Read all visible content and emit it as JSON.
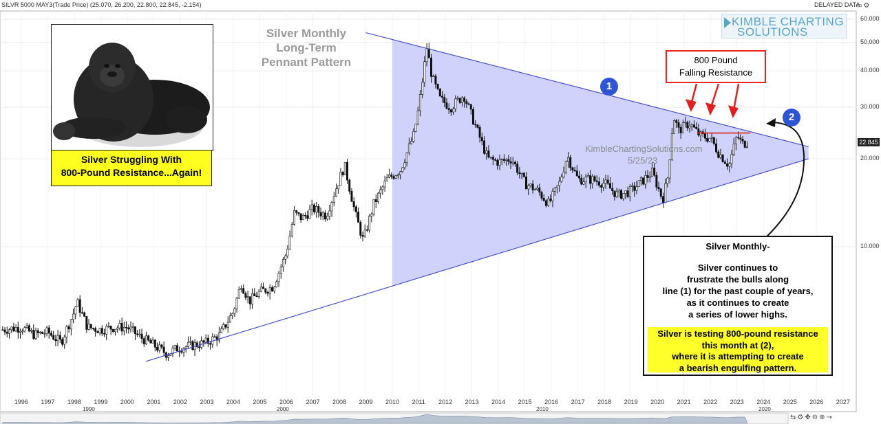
{
  "header": {
    "instrument": "SILVR 5000 MAY3(Trade Price) (25.070, 26.200, 22.800, 22.845, -2.154)",
    "delayed": "DELAYED DATA"
  },
  "logo": {
    "line1": "KIMBLE CHARTING",
    "line2": "SOLUTIONS"
  },
  "title_lines": [
    "Silver Monthly",
    "Long-Term",
    "Pennant Pattern"
  ],
  "callout_gorilla": {
    "line1": "Silver Struggling With",
    "line2": "800-Pound Resistance...Again!"
  },
  "callout_resistance": {
    "line1": "800 Pound",
    "line2": "Falling Resistance"
  },
  "note": {
    "heading": "Silver Monthly-",
    "body": [
      "Silver continues to",
      "frustrate the bulls along",
      "line (1) for the past couple of years,",
      "as it continues to create",
      "a series of lower highs."
    ],
    "highlight": [
      "Silver is testing 800-pound resistance",
      "this month at (2),",
      "where it is attempting to create",
      "a bearish engulfing pattern."
    ]
  },
  "markers": {
    "one": "1",
    "two": "2"
  },
  "watermark": {
    "site": "KimbleChartingSolutions.com",
    "date": "5/25/23"
  },
  "price_tag": "22.845",
  "decade_labels": [
    "1990",
    "2000",
    "2010",
    "2020"
  ],
  "icons": [
    "gorilla-photo",
    "zoom-icon",
    "settings-icon",
    "pan-icon",
    "zoom-out-icon",
    "zoom-in-icon",
    "arrow-icon"
  ],
  "colors": {
    "pennant_fill": "#cfd3fb",
    "trendline": "#4a50c8",
    "resistance": "#e02020",
    "highlight": "#ffff2a",
    "marker": "#2f55d4"
  },
  "chart_data": {
    "type": "line",
    "title": "",
    "xlabel": "",
    "ylabel": "",
    "y_scale": "log",
    "ylim": [
      4.3,
      62
    ],
    "xlim": [
      1995.2,
      2027.5
    ],
    "y_ticks": [
      10,
      20,
      30,
      40,
      50,
      60
    ],
    "y_tick_labels": [
      "10.000",
      "20.000",
      "30.000",
      "40.000",
      "50.000",
      "60.000"
    ],
    "x_ticks": [
      1996,
      1997,
      1998,
      1999,
      2000,
      2001,
      2002,
      2003,
      2004,
      2005,
      2006,
      2007,
      2008,
      2009,
      2010,
      2011,
      2012,
      2013,
      2014,
      2015,
      2016,
      2017,
      2018,
      2019,
      2020,
      2021,
      2022,
      2023,
      2024,
      2025,
      2026,
      2027
    ],
    "grid": true,
    "series": [
      {
        "x": [
          1995.3,
          1996.0,
          1996.5,
          1997.0,
          1997.5,
          1998.0,
          1998.1,
          1998.5,
          1999.0,
          1999.5,
          2000.0,
          2000.5,
          2001.0,
          2001.5,
          2001.9,
          2002.5,
          2003.0,
          2003.5,
          2004.0,
          2004.3,
          2004.6,
          2005.0,
          2005.5,
          2006.0,
          2006.3,
          2006.6,
          2007.0,
          2007.5,
          2008.0,
          2008.2,
          2008.6,
          2008.9,
          2009.3,
          2009.8,
          2010.3,
          2010.8,
          2011.0,
          2011.3,
          2011.5,
          2011.8,
          2012.2,
          2012.7,
          2013.2,
          2013.6,
          2014.0,
          2014.5,
          2015.0,
          2015.5,
          2015.9,
          2016.3,
          2016.6,
          2017.0,
          2017.5,
          2018.0,
          2018.5,
          2019.0,
          2019.5,
          2019.8,
          2020.2,
          2020.4,
          2020.6,
          2020.8,
          2021.2,
          2021.6,
          2022.0,
          2022.3,
          2022.7,
          2023.0,
          2023.2,
          2023.4
        ],
        "y": [
          5.2,
          5.3,
          5.0,
          5.1,
          4.7,
          6.0,
          6.5,
          5.3,
          5.2,
          5.3,
          5.3,
          4.9,
          4.6,
          4.3,
          4.5,
          4.6,
          4.7,
          5.0,
          6.0,
          7.5,
          6.5,
          7.0,
          7.3,
          9.5,
          13.0,
          12.5,
          13.5,
          12.8,
          17.0,
          19.0,
          13.0,
          10.5,
          14.0,
          17.0,
          18.3,
          24.0,
          30.0,
          48.0,
          38.0,
          32.0,
          30.0,
          33.0,
          25.0,
          20.0,
          19.5,
          20.0,
          16.5,
          15.5,
          14.0,
          16.5,
          20.5,
          17.0,
          17.0,
          16.5,
          15.0,
          15.5,
          17.0,
          18.0,
          14.5,
          17.5,
          28.0,
          25.0,
          26.5,
          24.0,
          23.5,
          21.0,
          19.0,
          24.0,
          22.5,
          22.8
        ],
        "style": "monthly candlesticks (approx. trace)"
      }
    ],
    "trendlines": [
      {
        "label": "1",
        "name": "falling resistance",
        "from": [
          2009.0,
          54.0
        ],
        "to": [
          2025.7,
          22.0
        ]
      },
      {
        "name": "rising support",
        "from": [
          2000.7,
          4.05
        ],
        "to": [
          2025.7,
          20.0
        ]
      },
      {
        "name": "800-pound horizontal resistance",
        "from": [
          2021.5,
          24.5
        ],
        "to": [
          2023.5,
          24.5
        ]
      }
    ],
    "annotations": [
      "1",
      "2",
      "800 Pound Falling Resistance",
      "KimbleChartingSolutions.com 5/25/23"
    ]
  }
}
